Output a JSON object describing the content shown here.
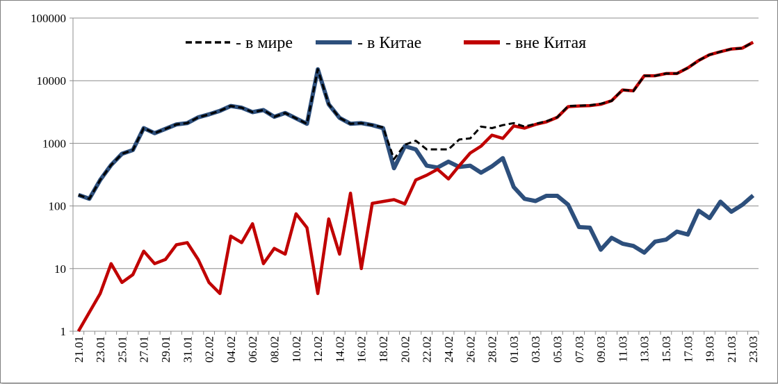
{
  "chart_data": {
    "type": "line",
    "y_scale": "log",
    "ylim": [
      1,
      100000
    ],
    "grid": true,
    "legend_position": "top",
    "y_ticks": [
      "1",
      "10",
      "100",
      "1000",
      "10000",
      "100000"
    ],
    "x": [
      "21.01",
      "22.01",
      "23.01",
      "24.01",
      "25.01",
      "26.01",
      "27.01",
      "28.01",
      "29.01",
      "30.01",
      "31.01",
      "01.02",
      "02.02",
      "03.02",
      "04.02",
      "05.02",
      "06.02",
      "07.02",
      "08.02",
      "09.02",
      "10.02",
      "11.02",
      "12.02",
      "13.02",
      "14.02",
      "15.02",
      "16.02",
      "17.02",
      "18.02",
      "19.02",
      "20.02",
      "21.02",
      "22.02",
      "23.02",
      "24.02",
      "25.02",
      "26.02",
      "27.02",
      "28.02",
      "29.02",
      "01.03",
      "02.03",
      "03.03",
      "04.03",
      "05.03",
      "06.03",
      "07.03",
      "08.03",
      "09.03",
      "10.03",
      "11.03",
      "12.03",
      "13.03",
      "14.03",
      "15.03",
      "16.03",
      "17.03",
      "18.03",
      "19.03",
      "20.03",
      "21.03",
      "22.03",
      "23.03"
    ],
    "x_tick_labels": [
      "21.01",
      "23.01",
      "25.01",
      "27.01",
      "29.01",
      "31.01",
      "02.02",
      "04.02",
      "06.02",
      "08.02",
      "10.02",
      "12.02",
      "14.02",
      "16.02",
      "18.02",
      "20.02",
      "22.02",
      "24.02",
      "26.02",
      "28.02",
      "01.03",
      "03.03",
      "05.03",
      "07.03",
      "09.03",
      "11.03",
      "13.03",
      "15.03",
      "17.03",
      "19.03",
      "21.03",
      "23.03"
    ],
    "series": [
      {
        "name": "- в мире",
        "color": "#000000",
        "style": "dashed",
        "values": [
          150,
          130,
          260,
          450,
          680,
          780,
          1750,
          1450,
          1700,
          2000,
          2100,
          2600,
          2900,
          3300,
          3950,
          3700,
          3150,
          3400,
          2650,
          3050,
          2500,
          2050,
          15200,
          4200,
          2550,
          2050,
          2100,
          1950,
          1800,
          560,
          950,
          1100,
          800,
          800,
          800,
          1150,
          1200,
          1850,
          1750,
          1950,
          2100,
          1850,
          2050,
          2250,
          2600,
          3950,
          4000,
          4050,
          4300,
          4750,
          7200,
          6800,
          12000,
          12000,
          13000,
          13000,
          16000,
          21000,
          26000,
          29000,
          32000,
          33000,
          41000
        ]
      },
      {
        "name": "-  в Китае",
        "color": "#2d4f7c",
        "style": "solid",
        "values": [
          150,
          130,
          260,
          450,
          680,
          780,
          1750,
          1450,
          1700,
          2000,
          2100,
          2600,
          2900,
          3300,
          3950,
          3700,
          3150,
          3400,
          2650,
          3050,
          2500,
          2050,
          15200,
          4200,
          2550,
          2050,
          2100,
          1950,
          1750,
          400,
          900,
          800,
          440,
          410,
          510,
          420,
          440,
          340,
          430,
          580,
          200,
          130,
          120,
          145,
          145,
          105,
          46,
          45,
          20,
          31,
          25,
          23,
          18,
          27,
          29,
          39,
          35,
          84,
          64,
          117,
          81,
          104,
          147
        ]
      },
      {
        "name": "- вне Китая",
        "color": "#c00000",
        "style": "solid",
        "values": [
          1,
          2,
          4,
          12,
          6,
          8,
          19,
          12,
          14,
          24,
          26,
          14,
          6,
          4,
          33,
          26,
          52,
          12,
          21,
          17,
          75,
          45,
          4,
          62,
          17,
          160,
          10,
          110,
          118,
          126,
          108,
          260,
          310,
          385,
          270,
          440,
          700,
          900,
          1350,
          1200,
          1900,
          1750,
          2000,
          2200,
          2600,
          3850,
          3950,
          4000,
          4200,
          4800,
          7100,
          6900,
          12000,
          12000,
          13000,
          13000,
          16000,
          21000,
          26000,
          29000,
          32000,
          33000,
          41000
        ]
      }
    ]
  }
}
